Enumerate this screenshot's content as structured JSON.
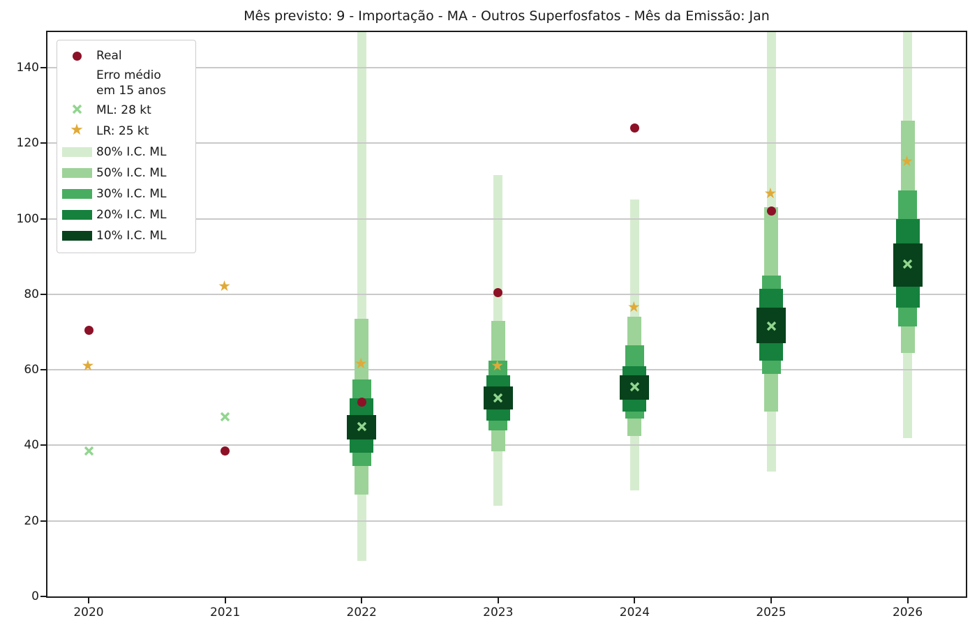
{
  "title": "Mês previsto: 9 - Importação - MA - Outros Superfosfatos - Mês da Emissão: Jan",
  "colors": {
    "real": "#8c1127",
    "lr": "#e0aa38",
    "ml": "#92d58f",
    "ci_80": "#d6eccf",
    "ci_50": "#9dd398",
    "ci_30": "#48ad60",
    "ci_20": "#15813d",
    "ci_10": "#07421c",
    "grid": "#c9c9c9",
    "spine": "#1a1a1a",
    "text": "#1a1a1a"
  },
  "legend": {
    "entries": [
      {
        "marker": "dot",
        "color_key": "real",
        "label": "Real"
      },
      {
        "marker": "none",
        "color_key": null,
        "label": "Erro médio\nem 15 anos"
      },
      {
        "marker": "x",
        "color_key": "ml",
        "label": "ML: 28 kt"
      },
      {
        "marker": "star",
        "color_key": "lr",
        "label": "LR: 25 kt"
      },
      {
        "marker": "patch",
        "color_key": "ci_80",
        "label": "80% I.C. ML"
      },
      {
        "marker": "patch",
        "color_key": "ci_50",
        "label": "50% I.C. ML"
      },
      {
        "marker": "patch",
        "color_key": "ci_30",
        "label": "30% I.C. ML"
      },
      {
        "marker": "patch",
        "color_key": "ci_20",
        "label": "20% I.C. ML"
      },
      {
        "marker": "patch",
        "color_key": "ci_10",
        "label": "10% I.C. ML"
      }
    ]
  },
  "chart_data": {
    "type": "scatter",
    "title": "Mês previsto: 9 - Importação - MA - Outros Superfosfatos - Mês da Emissão: Jan",
    "xlabel": "",
    "ylabel": "",
    "x_categories": [
      "2020",
      "2021",
      "2022",
      "2023",
      "2024",
      "2025",
      "2026"
    ],
    "ylim": [
      0,
      149.4
    ],
    "yticks": [
      0,
      20,
      40,
      60,
      80,
      100,
      120,
      140
    ],
    "grid": "horizontal-only",
    "legend_position": "upper-left",
    "units": "kt",
    "series": [
      {
        "name": "Real",
        "marker": "circle",
        "color_key": "real",
        "values": [
          70.5,
          38.5,
          51.5,
          80.5,
          124,
          102,
          null
        ]
      },
      {
        "name": "LR: 25 kt",
        "marker": "star",
        "color_key": "lr",
        "values": [
          61,
          82,
          61.5,
          61,
          76.5,
          106.5,
          115
        ]
      },
      {
        "name": "ML: 28 kt",
        "marker": "x",
        "color_key": "ml",
        "values": [
          38.5,
          47.5,
          45,
          52.5,
          55.5,
          71.5,
          88
        ]
      }
    ],
    "ci_bands": [
      {
        "level": "80% I.C. ML",
        "color_key": "ci_80",
        "lower": [
          null,
          null,
          9.5,
          24,
          28,
          33,
          42
        ],
        "upper": [
          null,
          null,
          150,
          111.5,
          105,
          150,
          150
        ],
        "note": "values of 150 are clipped at the top of the axes"
      },
      {
        "level": "50% I.C. ML",
        "color_key": "ci_50",
        "lower": [
          null,
          null,
          27,
          38.5,
          42.5,
          49,
          64.5
        ],
        "upper": [
          null,
          null,
          73.5,
          73,
          74,
          103,
          126
        ]
      },
      {
        "level": "30% I.C. ML",
        "color_key": "ci_30",
        "lower": [
          null,
          null,
          34.5,
          44,
          47,
          59,
          71.5
        ],
        "upper": [
          null,
          null,
          57.5,
          62.5,
          66.5,
          85,
          107.5
        ]
      },
      {
        "level": "20% I.C. ML",
        "color_key": "ci_20",
        "lower": [
          null,
          null,
          38,
          46.5,
          49,
          62.5,
          76.5
        ],
        "upper": [
          null,
          null,
          52.5,
          58.5,
          61,
          81.5,
          100
        ]
      },
      {
        "level": "10% I.C. ML",
        "color_key": "ci_10",
        "lower": [
          null,
          null,
          41.5,
          49.5,
          52,
          67,
          82
        ],
        "upper": [
          null,
          null,
          48,
          55.5,
          58.5,
          76.5,
          93.5
        ]
      }
    ]
  }
}
